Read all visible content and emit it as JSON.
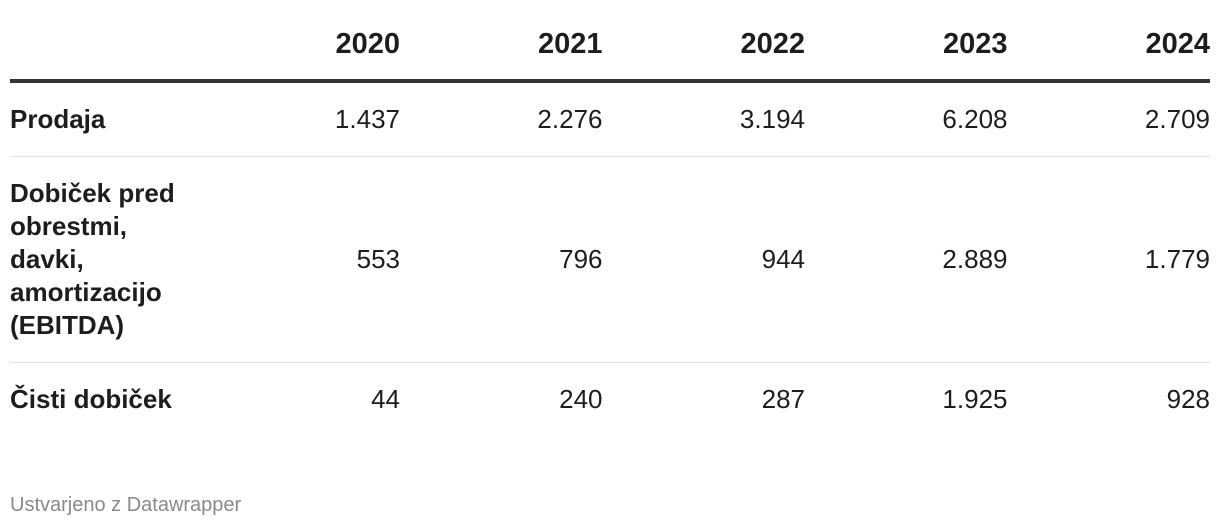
{
  "table": {
    "columns": [
      "2020",
      "2021",
      "2022",
      "2023",
      "2024"
    ],
    "rows": [
      {
        "label": "Prodaja",
        "values": [
          "1.437",
          "2.276",
          "3.194",
          "6.208",
          "2.709"
        ]
      },
      {
        "label": "Dobiček pred obrestmi, davki, amortizacijo (EBITDA)",
        "values": [
          "553",
          "796",
          "944",
          "2.889",
          "1.779"
        ]
      },
      {
        "label": "Čisti dobiček",
        "values": [
          "44",
          "240",
          "287",
          "1.925",
          "928"
        ]
      }
    ]
  },
  "footer": "Ustvarjeno z Datawrapper"
}
